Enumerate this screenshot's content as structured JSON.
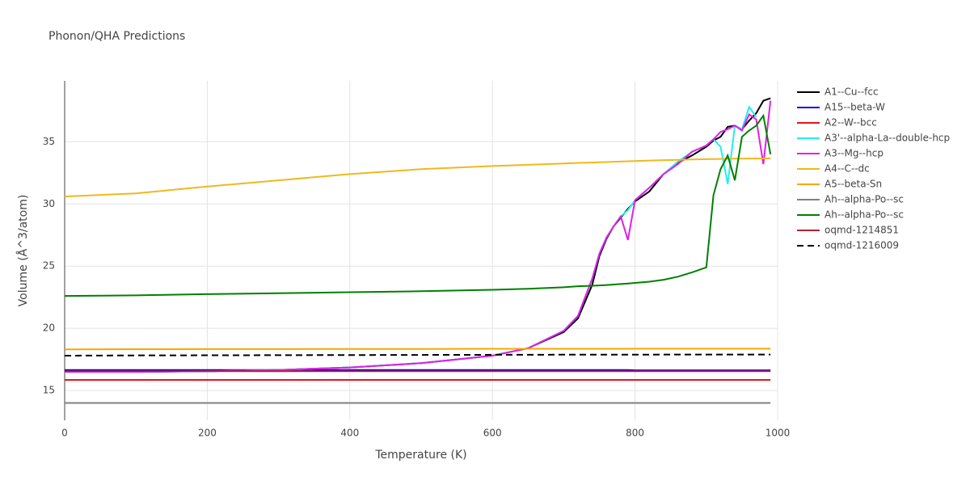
{
  "chart_data": {
    "type": "line",
    "title": "Phonon/QHA Predictions",
    "x_label": "Temperature (K)",
    "y_label": "Volume (Å^3/atom)",
    "x": [
      0,
      100,
      200,
      300,
      400,
      500,
      600,
      650,
      700,
      720,
      740,
      750,
      760,
      770,
      780,
      790,
      800,
      820,
      840,
      860,
      880,
      900,
      910,
      920,
      930,
      940,
      950,
      960,
      970,
      980,
      990
    ],
    "xlim": [
      0,
      1000
    ],
    "xticks": [
      0,
      200,
      400,
      600,
      800,
      1000
    ],
    "ylim": [
      12.6,
      39.9
    ],
    "yticks": [
      15,
      20,
      25,
      30,
      35
    ],
    "grid": true,
    "legend": "right",
    "series": [
      {
        "name": "A1--Cu--fcc",
        "color": "#000000",
        "values": [
          16.5,
          16.5,
          16.55,
          16.65,
          16.85,
          17.2,
          17.8,
          18.4,
          19.7,
          20.8,
          23.5,
          25.8,
          27.2,
          28.2,
          28.9,
          29.6,
          30.2,
          31,
          32.4,
          33.3,
          33.9,
          34.6,
          35.1,
          35.4,
          36.2,
          36.3,
          36,
          36.7,
          37.3,
          38.3,
          38.5
        ]
      },
      {
        "name": "A15--beta-W",
        "color": "#0000ff",
        "values": [
          16.65,
          16.65,
          16.65,
          16.65,
          16.65,
          16.65,
          16.65,
          16.65,
          16.65,
          16.65,
          16.65,
          16.65,
          16.65,
          16.65,
          16.65,
          16.65,
          16.62,
          16.62,
          16.62,
          16.62,
          16.62,
          16.62,
          16.62,
          16.62,
          16.62,
          16.62,
          16.62,
          16.62,
          16.62,
          16.62,
          16.62
        ]
      },
      {
        "name": "A2--W--bcc",
        "color": "#e8101e",
        "values": [
          15.85,
          15.85,
          15.85,
          15.85,
          15.85,
          15.85,
          15.85,
          15.85,
          15.85,
          15.85,
          15.85,
          15.85,
          15.85,
          15.85,
          15.85,
          15.85,
          15.85,
          15.85,
          15.85,
          15.85,
          15.85,
          15.85,
          15.85,
          15.85,
          15.85,
          15.85,
          15.85,
          15.85,
          15.85,
          15.85,
          15.85
        ]
      },
      {
        "name": "A3'--alpha-La--double-hcp",
        "color": "#22eeee",
        "values": [
          16.5,
          16.5,
          16.55,
          16.65,
          16.85,
          17.2,
          17.8,
          18.4,
          19.8,
          21,
          24,
          26,
          27.3,
          28.2,
          29,
          29.5,
          30.3,
          31.3,
          32.4,
          33.4,
          34.2,
          34.7,
          35.2,
          34.6,
          31.6,
          36.3,
          36,
          37.8,
          37,
          null,
          null
        ]
      },
      {
        "name": "A3--Mg--hcp",
        "color": "#e020e8",
        "values": [
          16.5,
          16.5,
          16.55,
          16.65,
          16.85,
          17.2,
          17.8,
          18.4,
          19.8,
          21,
          24,
          26,
          27.3,
          28.2,
          29,
          27.1,
          30.3,
          31.3,
          32.4,
          33.2,
          34.2,
          34.7,
          35.2,
          35.8,
          36,
          36.3,
          35.9,
          37.2,
          36.8,
          33.2,
          38.3
        ]
      },
      {
        "name": "A4--C--dc",
        "color": "#f0b81e",
        "values": [
          30.6,
          30.85,
          31.4,
          31.9,
          32.4,
          32.8,
          33.05,
          33.15,
          33.25,
          33.3,
          33.33,
          33.35,
          33.37,
          33.39,
          33.41,
          33.43,
          33.45,
          33.49,
          33.52,
          33.55,
          33.58,
          33.6,
          33.61,
          33.62,
          33.63,
          33.64,
          33.64,
          33.65,
          33.65,
          33.66,
          33.66
        ]
      },
      {
        "name": "A5--beta-Sn",
        "color": "#f5a800",
        "values": [
          18.3,
          18.32,
          18.33,
          18.33,
          18.34,
          18.34,
          18.35,
          18.35,
          18.35,
          18.35,
          18.35,
          18.35,
          18.35,
          18.35,
          18.35,
          18.35,
          18.36,
          18.36,
          18.36,
          18.36,
          18.36,
          18.36,
          18.36,
          18.36,
          18.36,
          18.36,
          18.36,
          18.36,
          18.36,
          18.36,
          18.36
        ]
      },
      {
        "name": "Ah--alpha-Po--sc",
        "color": "#808080",
        "values": [
          14,
          14,
          14,
          14,
          14,
          14,
          14,
          14,
          14,
          14,
          14,
          14,
          14,
          14,
          14,
          14,
          14,
          14,
          14,
          14,
          14,
          14,
          14,
          14,
          14,
          14,
          14,
          14,
          14,
          14,
          14
        ]
      },
      {
        "name": "Ah--alpha-Po--sc",
        "color": "#008000",
        "values": [
          22.6,
          22.65,
          22.75,
          22.82,
          22.9,
          22.98,
          23.1,
          23.18,
          23.3,
          23.38,
          23.42,
          23.45,
          23.48,
          23.52,
          23.56,
          23.6,
          23.65,
          23.75,
          23.9,
          24.15,
          24.5,
          24.9,
          30.7,
          32.8,
          33.9,
          31.9,
          35.4,
          35.9,
          36.3,
          37.1,
          34
        ]
      },
      {
        "name": "oqmd-1214851",
        "color": "#b22234",
        "values": [
          16.55,
          16.55,
          16.55,
          16.55,
          16.55,
          16.55,
          16.55,
          16.55,
          16.55,
          16.55,
          16.55,
          16.55,
          16.55,
          16.55,
          16.55,
          16.55,
          16.55,
          16.55,
          16.55,
          16.55,
          16.55,
          16.55,
          16.55,
          16.55,
          16.55,
          16.55,
          16.55,
          16.55,
          16.55,
          16.55,
          16.55
        ]
      },
      {
        "name": "oqmd-1216009",
        "color": "#000000",
        "dash": "dash",
        "values": [
          17.8,
          17.82,
          17.83,
          17.84,
          17.85,
          17.86,
          17.87,
          17.87,
          17.88,
          17.88,
          17.88,
          17.88,
          17.88,
          17.88,
          17.88,
          17.88,
          17.88,
          17.88,
          17.89,
          17.89,
          17.89,
          17.89,
          17.89,
          17.89,
          17.89,
          17.89,
          17.89,
          17.89,
          17.89,
          17.89,
          17.89
        ]
      }
    ]
  }
}
